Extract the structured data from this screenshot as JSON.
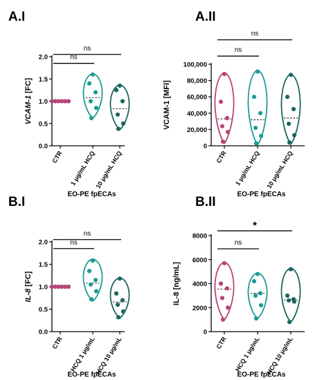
{
  "colors": {
    "ctr": "#b8447a",
    "hcq1": "#1e9a94",
    "hcq10": "#1a6660"
  },
  "chart_data": [
    {
      "type": "violin",
      "panel_label": "A.I",
      "ylabel": "VCAM-1 [FC]",
      "ylabel_italic_part": "VCAM-1",
      "ylabel_rest": " [FC]",
      "xlabel": "EO-PE fpECAs",
      "yticks": [
        "0.0",
        "0.5",
        "1.0",
        "1.5",
        "2.0"
      ],
      "ylim": [
        0,
        2.0
      ],
      "categories": [
        "CTR",
        "1 μg/mL HCQ",
        "10 μg/mL HCQ"
      ],
      "series": [
        {
          "name": "CTR",
          "values": [
            1.0,
            1.0,
            1.0,
            1.0,
            1.0,
            1.0
          ]
        },
        {
          "name": "1 μg/mL HCQ",
          "values": [
            1.6,
            1.4,
            1.2,
            1.0,
            0.85,
            0.62
          ],
          "range": [
            0.62,
            1.62
          ],
          "median": 1.08
        },
        {
          "name": "10 μg/mL HCQ",
          "values": [
            1.35,
            1.25,
            1.0,
            0.7,
            0.5,
            0.38
          ],
          "range": [
            0.36,
            1.37
          ],
          "median": 0.83
        }
      ],
      "significance": [
        {
          "from": 0,
          "to": 1,
          "label": "ns",
          "y": 1.85
        },
        {
          "from": 0,
          "to": 2,
          "label": "ns",
          "y": 2.05
        }
      ]
    },
    {
      "type": "violin",
      "panel_label": "A.II",
      "ylabel": "VCAM-1 [MFI]",
      "xlabel": "EO-PE fpECAs",
      "yticks": [
        "0",
        "20,000",
        "40,000",
        "60,000",
        "80,000",
        "100,000"
      ],
      "ylim": [
        0,
        100000
      ],
      "categories": [
        "CTR",
        "1 μg/mL HCQ",
        "10 μg/mL HCQ"
      ],
      "series": [
        {
          "name": "CTR",
          "values": [
            88000,
            54000,
            34000,
            24000,
            17000,
            5000
          ],
          "range": [
            3000,
            90000
          ],
          "median": 33000
        },
        {
          "name": "1 μg/mL HCQ",
          "values": [
            91000,
            60000,
            40000,
            22000,
            12000,
            3000
          ],
          "range": [
            1000,
            93000
          ],
          "median": 32000
        },
        {
          "name": "10 μg/mL HCQ",
          "values": [
            87000,
            60000,
            45000,
            27000,
            13000,
            4000
          ],
          "range": [
            2000,
            88000
          ],
          "median": 34000
        }
      ],
      "significance": [
        {
          "from": 0,
          "to": 1,
          "label": "ns",
          "y": 110000
        },
        {
          "from": 0,
          "to": 2,
          "label": "ns",
          "y": 130000
        }
      ]
    },
    {
      "type": "violin",
      "panel_label": "B.I",
      "ylabel": "IL-8 [FC]",
      "ylabel_italic_part": "IL-8",
      "ylabel_rest": " [FC]",
      "xlabel": "EO-PE fpECAs",
      "yticks": [
        "0.0",
        "0.5",
        "1.0",
        "1.5",
        "2.0"
      ],
      "ylim": [
        0,
        2.0
      ],
      "categories": [
        "CTR",
        "HCQ 1 μg/mL",
        "HCQ 10 μg/mL"
      ],
      "series": [
        {
          "name": "CTR",
          "values": [
            1.0,
            1.0,
            1.0,
            1.0,
            1.0,
            1.0
          ]
        },
        {
          "name": "HCQ 1 μg/mL",
          "values": [
            1.58,
            1.35,
            1.15,
            1.05,
            0.9,
            0.72
          ],
          "range": [
            0.68,
            1.62
          ],
          "median": 1.08
        },
        {
          "name": "HCQ 10 μg/mL",
          "values": [
            1.18,
            0.85,
            0.7,
            0.6,
            0.45,
            0.32
          ],
          "range": [
            0.3,
            1.2
          ],
          "median": 0.66
        }
      ],
      "significance": [
        {
          "from": 0,
          "to": 1,
          "label": "ns",
          "y": 1.85
        },
        {
          "from": 0,
          "to": 2,
          "label": "ns",
          "y": 2.05
        }
      ]
    },
    {
      "type": "violin",
      "panel_label": "B.II",
      "ylabel": "IL-8 [ng/mL]",
      "xlabel": "EO-PE fpECAs",
      "yticks": [
        "0",
        "2000",
        "4000",
        "6000",
        "8000"
      ],
      "ylim": [
        0,
        8000
      ],
      "categories": [
        "CTR",
        "HCQ 1 μg/mL",
        "HCQ 10 μg/mL"
      ],
      "series": [
        {
          "name": "CTR",
          "values": [
            5700,
            4000,
            3600,
            2800,
            2000,
            1000
          ],
          "range": [
            1000,
            5800
          ],
          "median": 3550
        },
        {
          "name": "HCQ 1 μg/mL",
          "values": [
            4800,
            4200,
            3200,
            3000,
            2200,
            1100
          ],
          "range": [
            1100,
            4900
          ],
          "median": 3200
        },
        {
          "name": "HCQ 10 μg/mL",
          "values": [
            5200,
            3000,
            2700,
            2600,
            2500,
            800
          ],
          "range": [
            800,
            5300
          ],
          "median": 2650
        }
      ],
      "significance": [
        {
          "from": 0,
          "to": 1,
          "label": "ns",
          "y": 6900
        },
        {
          "from": 0,
          "to": 2,
          "label": "*",
          "y": 8400
        }
      ]
    }
  ]
}
